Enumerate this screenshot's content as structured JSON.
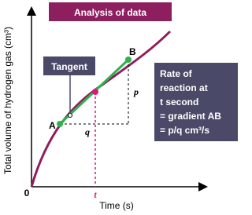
{
  "header": {
    "title": "Analysis of data"
  },
  "axes": {
    "y_label": "Total volume of hydrogen gas (cm³)",
    "x_label": "Time (s)",
    "origin": "0",
    "time_marker": "t"
  },
  "tangent": {
    "label": "Tangent",
    "point_a": "A",
    "point_b": "B",
    "rise": "p",
    "run": "q"
  },
  "info_box": {
    "lines": [
      "Rate of",
      "reaction at",
      "t second",
      "= gradient AB",
      "= p/q cm³/s"
    ]
  }
}
